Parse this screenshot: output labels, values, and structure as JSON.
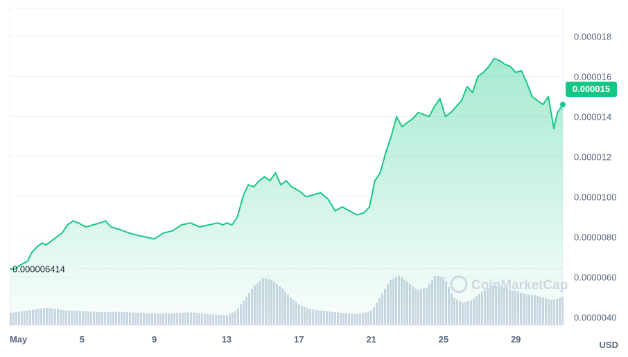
{
  "currency_label": "USD",
  "watermark": "CoinMarketCap",
  "colors": {
    "line": "#16c784",
    "volume": "#cfd6e4",
    "grid": "#eff2f5",
    "axis_text": "#58667e"
  },
  "chart_data": {
    "type": "line",
    "x_tick_labels": [
      "May",
      "5",
      "9",
      "13",
      "17",
      "21",
      "25",
      "29"
    ],
    "x_tick_days": [
      1,
      5,
      9,
      13,
      17,
      21,
      25,
      29
    ],
    "y_tick_labels": [
      "0.000018",
      "0.000016",
      "0.000014",
      "0.000012",
      "0.0000100",
      "0.0000080",
      "0.0000060",
      "0.0000040"
    ],
    "y_tick_values": [
      1.8e-05,
      1.6e-05,
      1.4e-05,
      1.2e-05,
      1e-05,
      8e-06,
      6e-06,
      4e-06
    ],
    "ylim": [
      3.6e-06,
      1.94e-05
    ],
    "xlim": [
      1,
      31.6
    ],
    "current_price_label": "0.000015",
    "current_price": 1.46e-05,
    "min_price_label": "0.000006414",
    "min_price": 6.414e-06,
    "price_series": {
      "x": [
        1.0,
        1.3,
        1.6,
        2.0,
        2.2,
        2.5,
        2.8,
        3.0,
        3.3,
        3.6,
        3.9,
        4.2,
        4.5,
        4.8,
        5.2,
        5.6,
        6.0,
        6.3,
        6.6,
        7.0,
        7.3,
        7.6,
        8.0,
        8.5,
        9.0,
        9.5,
        10.0,
        10.5,
        11.0,
        11.5,
        12.0,
        12.5,
        12.8,
        13.0,
        13.3,
        13.6,
        13.9,
        14.2,
        14.5,
        14.8,
        15.1,
        15.4,
        15.7,
        16.0,
        16.3,
        16.6,
        17.0,
        17.4,
        17.8,
        18.2,
        18.6,
        19.0,
        19.4,
        19.8,
        20.2,
        20.6,
        20.9,
        21.2,
        21.5,
        21.8,
        22.1,
        22.4,
        22.7,
        23.0,
        23.3,
        23.6,
        23.9,
        24.2,
        24.5,
        24.8,
        25.1,
        25.4,
        25.7,
        26.0,
        26.3,
        26.6,
        26.9,
        27.2,
        27.5,
        27.8,
        28.1,
        28.4,
        28.7,
        29.0,
        29.3,
        29.6,
        29.9,
        30.2,
        30.5,
        30.8,
        31.1,
        31.3,
        31.6
      ],
      "y": [
        6.4e-06,
        6.4e-06,
        6.6e-06,
        6.8e-06,
        7.2e-06,
        7.5e-06,
        7.7e-06,
        7.6e-06,
        7.8e-06,
        8e-06,
        8.2e-06,
        8.6e-06,
        8.8e-06,
        8.7e-06,
        8.5e-06,
        8.6e-06,
        8.7e-06,
        8.8e-06,
        8.5e-06,
        8.4e-06,
        8.3e-06,
        8.2e-06,
        8.1e-06,
        8e-06,
        7.9e-06,
        8.2e-06,
        8.3e-06,
        8.6e-06,
        8.7e-06,
        8.5e-06,
        8.6e-06,
        8.7e-06,
        8.6e-06,
        8.7e-06,
        8.6e-06,
        9e-06,
        1e-05,
        1.06e-05,
        1.05e-05,
        1.08e-05,
        1.1e-05,
        1.08e-05,
        1.12e-05,
        1.06e-05,
        1.08e-05,
        1.05e-05,
        1.03e-05,
        1e-05,
        1.01e-05,
        1.02e-05,
        9.9e-06,
        9.3e-06,
        9.5e-06,
        9.3e-06,
        9.1e-06,
        9.2e-06,
        9.5e-06,
        1.08e-05,
        1.12e-05,
        1.22e-05,
        1.3e-05,
        1.4e-05,
        1.35e-05,
        1.37e-05,
        1.39e-05,
        1.42e-05,
        1.41e-05,
        1.4e-05,
        1.45e-05,
        1.49e-05,
        1.4e-05,
        1.42e-05,
        1.45e-05,
        1.48e-05,
        1.55e-05,
        1.52e-05,
        1.6e-05,
        1.62e-05,
        1.65e-05,
        1.69e-05,
        1.68e-05,
        1.66e-05,
        1.65e-05,
        1.62e-05,
        1.63e-05,
        1.57e-05,
        1.5e-05,
        1.48e-05,
        1.46e-05,
        1.5e-05,
        1.34e-05,
        1.42e-05,
        1.46e-05
      ]
    },
    "volume_series": {
      "x": [
        1.0,
        2.0,
        3.0,
        4.0,
        5.0,
        6.0,
        7.0,
        8.0,
        9.0,
        10.0,
        11.0,
        12.0,
        13.0,
        13.5,
        14.0,
        14.5,
        15.0,
        15.5,
        16.0,
        16.5,
        17.0,
        17.5,
        18.0,
        18.5,
        19.0,
        19.5,
        20.0,
        20.5,
        21.0,
        21.5,
        22.0,
        22.5,
        23.0,
        23.5,
        24.0,
        24.5,
        25.0,
        25.5,
        26.0,
        26.5,
        27.0,
        27.5,
        28.0,
        28.5,
        29.0,
        29.5,
        30.0,
        30.5,
        31.0,
        31.6
      ],
      "v": [
        0.25,
        0.3,
        0.35,
        0.3,
        0.28,
        0.26,
        0.27,
        0.25,
        0.23,
        0.24,
        0.26,
        0.22,
        0.2,
        0.3,
        0.55,
        0.8,
        0.95,
        0.9,
        0.75,
        0.55,
        0.4,
        0.33,
        0.3,
        0.28,
        0.26,
        0.24,
        0.22,
        0.24,
        0.3,
        0.6,
        0.9,
        1.0,
        0.85,
        0.7,
        0.75,
        1.0,
        0.95,
        0.55,
        0.45,
        0.5,
        0.65,
        0.78,
        0.8,
        0.72,
        0.68,
        0.62,
        0.6,
        0.55,
        0.5,
        0.58
      ]
    }
  }
}
